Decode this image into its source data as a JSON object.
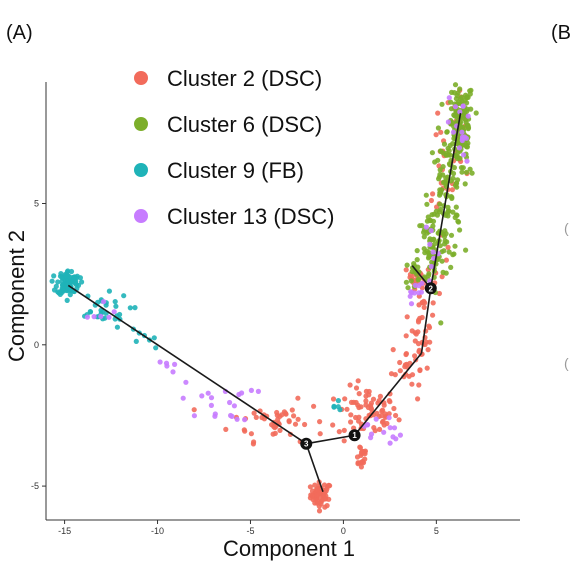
{
  "panel_labels": {
    "a": "(A)",
    "b": "(B"
  },
  "chart_data": {
    "type": "scatter",
    "xlabel": "Component 1",
    "ylabel": "Component 2",
    "xlim": [
      -16,
      9.5
    ],
    "ylim": [
      -6.2,
      9.3
    ],
    "xticks": [
      -15,
      -10,
      -5,
      0,
      5
    ],
    "yticks": [
      -5,
      0,
      5
    ],
    "grid": false,
    "legend": {
      "position": "top-left"
    },
    "series": [
      {
        "name": "Cluster 2 (DSC)",
        "color": "#f26b5b",
        "clumps": [
          {
            "x": -1.2,
            "y": -5.3,
            "sx": 0.28,
            "sy": 0.22,
            "n": 60
          },
          {
            "x": 1.3,
            "y": -2.4,
            "sx": 0.8,
            "sy": 0.45,
            "n": 70
          },
          {
            "x": 0.95,
            "y": -3.9,
            "sx": 0.18,
            "sy": 0.25,
            "n": 20
          },
          {
            "x": -3.5,
            "y": -2.7,
            "sx": 1.3,
            "sy": 0.35,
            "n": 50
          },
          {
            "x": 3.4,
            "y": -0.7,
            "sx": 0.4,
            "sy": 0.45,
            "n": 25
          },
          {
            "x": 4.3,
            "y": 0.8,
            "sx": 0.3,
            "sy": 0.8,
            "n": 40
          },
          {
            "x": 3.9,
            "y": 2.4,
            "sx": 0.3,
            "sy": 0.2,
            "n": 15
          },
          {
            "x": 5.3,
            "y": 5.5,
            "sx": 0.35,
            "sy": 1.4,
            "n": 25
          },
          {
            "x": 6.2,
            "y": 7.6,
            "sx": 0.2,
            "sy": 0.6,
            "n": 15
          }
        ]
      },
      {
        "name": "Cluster 6 (DSC)",
        "color": "#7cae2a",
        "clumps": [
          {
            "x": 6.3,
            "y": 7.6,
            "sx": 0.35,
            "sy": 0.9,
            "n": 150
          },
          {
            "x": 5.5,
            "y": 5.2,
            "sx": 0.45,
            "sy": 1.1,
            "n": 100
          },
          {
            "x": 4.7,
            "y": 3.3,
            "sx": 0.35,
            "sy": 0.8,
            "n": 60
          },
          {
            "x": 3.9,
            "y": 2.5,
            "sx": 0.3,
            "sy": 0.3,
            "n": 20
          }
        ]
      },
      {
        "name": "Cluster 9 (FB)",
        "color": "#1fb3b8",
        "clumps": [
          {
            "x": -14.8,
            "y": 2.2,
            "sx": 0.3,
            "sy": 0.22,
            "n": 90
          },
          {
            "x": -13.1,
            "y": 1.2,
            "sx": 0.8,
            "sy": 0.3,
            "n": 30
          },
          {
            "x": -10.8,
            "y": 0.1,
            "sx": 0.4,
            "sy": 0.3,
            "n": 7
          },
          {
            "x": -0.4,
            "y": -2.2,
            "sx": 0.3,
            "sy": 0.15,
            "n": 5
          }
        ]
      },
      {
        "name": "Cluster 13 (DSC)",
        "color": "#c77cff",
        "clumps": [
          {
            "x": -6.8,
            "y": -2.0,
            "sx": 1.0,
            "sy": 0.35,
            "n": 20
          },
          {
            "x": -12.8,
            "y": 1.0,
            "sx": 0.5,
            "sy": 0.3,
            "n": 6
          },
          {
            "x": -9.6,
            "y": -0.7,
            "sx": 0.3,
            "sy": 0.2,
            "n": 5
          },
          {
            "x": 2.1,
            "y": -3.0,
            "sx": 0.5,
            "sy": 0.3,
            "n": 14
          },
          {
            "x": 3.8,
            "y": 1.9,
            "sx": 0.3,
            "sy": 0.2,
            "n": 10
          },
          {
            "x": 6.3,
            "y": 7.5,
            "sx": 0.3,
            "sy": 0.9,
            "n": 20
          },
          {
            "x": 4.8,
            "y": 3.4,
            "sx": 0.3,
            "sy": 0.8,
            "n": 8
          }
        ]
      }
    ],
    "trajectory": {
      "edges": [
        [
          [
            -14.8,
            2.1
          ],
          [
            -2.0,
            -3.5
          ]
        ],
        [
          [
            -2.0,
            -3.5
          ],
          [
            0.6,
            -3.2
          ]
        ],
        [
          [
            -2.0,
            -3.5
          ],
          [
            -1.1,
            -5.2
          ]
        ],
        [
          [
            0.6,
            -3.2
          ],
          [
            4.2,
            -0.3
          ]
        ],
        [
          [
            4.2,
            -0.3
          ],
          [
            4.7,
            2.0
          ]
        ],
        [
          [
            4.7,
            2.0
          ],
          [
            6.3,
            8.2
          ]
        ],
        [
          [
            4.7,
            2.0
          ],
          [
            3.7,
            2.8
          ]
        ]
      ],
      "branch_points": [
        {
          "label": "1",
          "x": 0.6,
          "y": -3.2
        },
        {
          "label": "2",
          "x": 4.7,
          "y": 2.0
        },
        {
          "label": "3",
          "x": -2.0,
          "y": -3.5
        }
      ]
    }
  }
}
